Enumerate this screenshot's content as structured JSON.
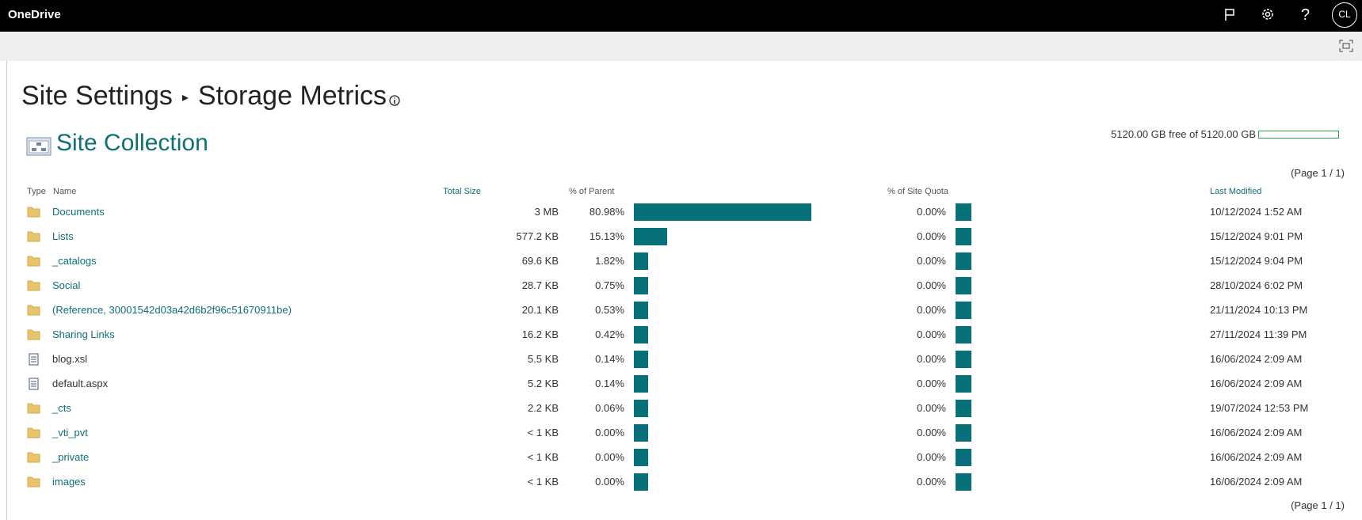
{
  "app": {
    "name": "OneDrive",
    "user_initials": "CL"
  },
  "header": {
    "breadcrumb": "Site Settings",
    "title": "Storage Metrics",
    "section": "Site Collection"
  },
  "quota": {
    "text": "5120.00 GB free of 5120.00 GB"
  },
  "paging": {
    "top": "(Page 1 / 1)",
    "bottom": "(Page 1 / 1)"
  },
  "table": {
    "columns": [
      "Type",
      "Name",
      "Total Size",
      "% of Parent",
      "% of Site Quota",
      "Last Modified"
    ],
    "rows": [
      {
        "type": "folder",
        "name": "Documents",
        "size": "3 MB",
        "parent": {
          "value": 80.98,
          "label": "80.98%"
        },
        "quota": {
          "value": 0,
          "label": "0.00%"
        },
        "modified": "10/12/2024 1:52 AM"
      },
      {
        "type": "folder",
        "name": "Lists",
        "size": "577.2 KB",
        "parent": {
          "value": 15.13,
          "label": "15.13%"
        },
        "quota": {
          "value": 0,
          "label": "0.00%"
        },
        "modified": "15/12/2024 9:01 PM"
      },
      {
        "type": "folder",
        "name": "_catalogs",
        "size": "69.6 KB",
        "parent": {
          "value": 1.82,
          "label": "1.82%"
        },
        "quota": {
          "value": 0,
          "label": "0.00%"
        },
        "modified": "15/12/2024 9:04 PM"
      },
      {
        "type": "folder",
        "name": "Social",
        "size": "28.7 KB",
        "parent": {
          "value": 0.75,
          "label": "0.75%"
        },
        "quota": {
          "value": 0,
          "label": "0.00%"
        },
        "modified": "28/10/2024 6:02 PM"
      },
      {
        "type": "folder",
        "name": "(Reference, 30001542d03a42d6b2f96c51670911be)",
        "size": "20.1 KB",
        "parent": {
          "value": 0.53,
          "label": "0.53%"
        },
        "quota": {
          "value": 0,
          "label": "0.00%"
        },
        "modified": "21/11/2024 10:13 PM"
      },
      {
        "type": "folder",
        "name": "Sharing Links",
        "size": "16.2 KB",
        "parent": {
          "value": 0.42,
          "label": "0.42%"
        },
        "quota": {
          "value": 0,
          "label": "0.00%"
        },
        "modified": "27/11/2024 11:39 PM"
      },
      {
        "type": "file",
        "name": "blog.xsl",
        "size": "5.5 KB",
        "parent": {
          "value": 0.14,
          "label": "0.14%"
        },
        "quota": {
          "value": 0,
          "label": "0.00%"
        },
        "modified": "16/06/2024 2:09 AM"
      },
      {
        "type": "file",
        "name": "default.aspx",
        "size": "5.2 KB",
        "parent": {
          "value": 0.14,
          "label": "0.14%"
        },
        "quota": {
          "value": 0,
          "label": "0.00%"
        },
        "modified": "16/06/2024 2:09 AM"
      },
      {
        "type": "folder",
        "name": "_cts",
        "size": "2.2 KB",
        "parent": {
          "value": 0.06,
          "label": "0.06%"
        },
        "quota": {
          "value": 0,
          "label": "0.00%"
        },
        "modified": "19/07/2024 12:53 PM"
      },
      {
        "type": "folder",
        "name": "_vti_pvt",
        "size": "< 1 KB",
        "parent": {
          "value": 0,
          "label": "0.00%"
        },
        "quota": {
          "value": 0,
          "label": "0.00%"
        },
        "modified": "16/06/2024 2:09 AM"
      },
      {
        "type": "folder",
        "name": "_private",
        "size": "< 1 KB",
        "parent": {
          "value": 0,
          "label": "0.00%"
        },
        "quota": {
          "value": 0,
          "label": "0.00%"
        },
        "modified": "16/06/2024 2:09 AM"
      },
      {
        "type": "folder",
        "name": "images",
        "size": "< 1 KB",
        "parent": {
          "value": 0,
          "label": "0.00%"
        },
        "quota": {
          "value": 0,
          "label": "0.00%"
        },
        "modified": "16/06/2024 2:09 AM"
      }
    ]
  }
}
